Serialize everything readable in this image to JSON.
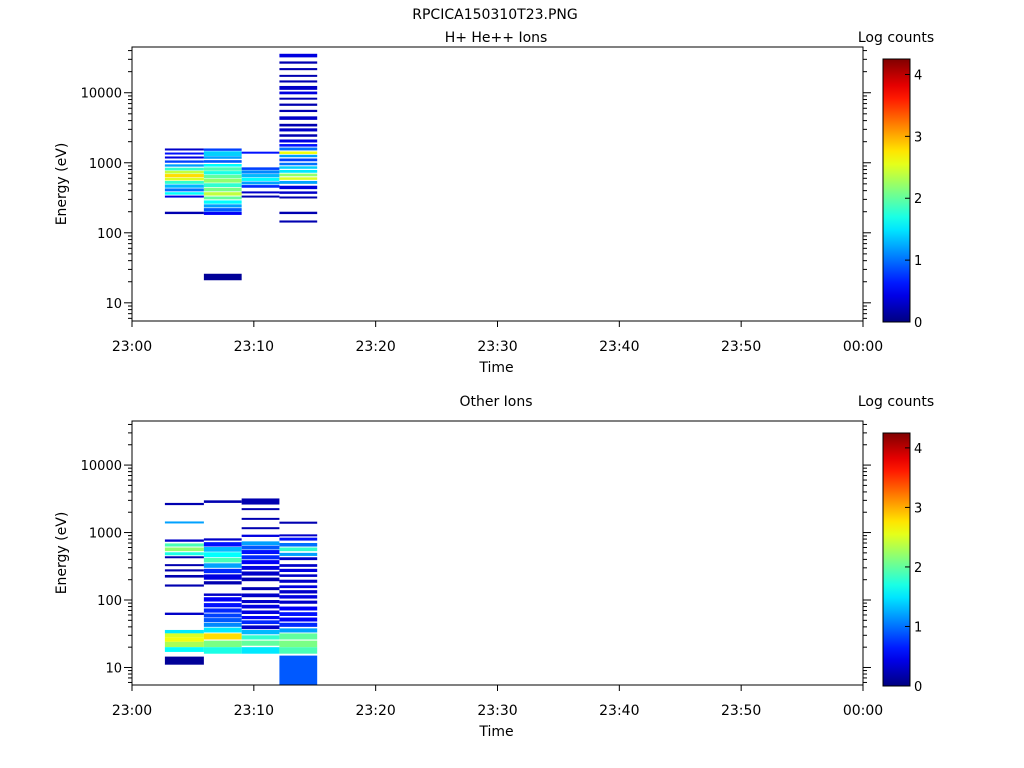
{
  "figure_title": "RPCICA150310T23.PNG",
  "chart_data": [
    {
      "type": "heatmap",
      "title": "H+ He++ Ions",
      "xlabel": "Time",
      "ylabel": "Energy (eV)",
      "x_ticks": [
        "23:00",
        "23:10",
        "23:20",
        "23:30",
        "23:40",
        "23:50",
        "00:00"
      ],
      "y_ticks": [
        "10",
        "100",
        "1000",
        "10000"
      ],
      "y_scale": "log",
      "ylim": [
        5.5,
        45000
      ],
      "xlim_minutes": [
        0,
        60
      ],
      "colorbar": {
        "label": "Log counts",
        "ticks": [
          "0",
          "1",
          "2",
          "3",
          "4"
        ],
        "range": [
          0,
          4.25
        ]
      },
      "time_bins_minutes": [
        [
          2.7,
          5.9
        ],
        [
          5.9,
          9.0
        ],
        [
          9.0,
          12.1
        ],
        [
          12.1,
          15.2
        ]
      ],
      "cells": [
        [
          0,
          [
            1500,
            1600
          ],
          0.3
        ],
        [
          0,
          [
            1320,
            1400
          ],
          0.6
        ],
        [
          0,
          [
            1150,
            1230
          ],
          0.4
        ],
        [
          0,
          [
            1000,
            1080
          ],
          0.8
        ],
        [
          0,
          [
            880,
            950
          ],
          1.2
        ],
        [
          0,
          [
            780,
            850
          ],
          1.8
        ],
        [
          0,
          [
            700,
            770
          ],
          2.4
        ],
        [
          0,
          [
            620,
            690
          ],
          2.8
        ],
        [
          0,
          [
            560,
            610
          ],
          2.5
        ],
        [
          0,
          [
            500,
            550
          ],
          1.8
        ],
        [
          0,
          [
            440,
            490
          ],
          1.3
        ],
        [
          0,
          [
            390,
            430
          ],
          1.0
        ],
        [
          0,
          [
            350,
            380
          ],
          1.6
        ],
        [
          0,
          [
            320,
            340
          ],
          0.4
        ],
        [
          0,
          [
            185,
            200
          ],
          0.2
        ],
        [
          1,
          [
            1480,
            1600
          ],
          0.8
        ],
        [
          1,
          [
            1250,
            1460
          ],
          1.4
        ],
        [
          1,
          [
            1140,
            1240
          ],
          1.2
        ],
        [
          1,
          [
            1000,
            1090
          ],
          0.9
        ],
        [
          1,
          [
            880,
            960
          ],
          1.6
        ],
        [
          1,
          [
            770,
            860
          ],
          1.9
        ],
        [
          1,
          [
            680,
            760
          ],
          1.7
        ],
        [
          1,
          [
            600,
            670
          ],
          2.0
        ],
        [
          1,
          [
            520,
            590
          ],
          2.2
        ],
        [
          1,
          [
            450,
            510
          ],
          1.8
        ],
        [
          1,
          [
            390,
            440
          ],
          2.1
        ],
        [
          1,
          [
            340,
            380
          ],
          2.4
        ],
        [
          1,
          [
            300,
            330
          ],
          2.0
        ],
        [
          1,
          [
            260,
            290
          ],
          1.6
        ],
        [
          1,
          [
            230,
            255
          ],
          1.2
        ],
        [
          1,
          [
            200,
            225
          ],
          0.9
        ],
        [
          1,
          [
            180,
            198
          ],
          0.5
        ],
        [
          1,
          [
            21,
            26
          ],
          0.1
        ],
        [
          2,
          [
            1360,
            1440
          ],
          0.6
        ],
        [
          2,
          [
            790,
            860
          ],
          0.8
        ],
        [
          2,
          [
            700,
            780
          ],
          1.1
        ],
        [
          2,
          [
            620,
            690
          ],
          1.3
        ],
        [
          2,
          [
            550,
            610
          ],
          1.6
        ],
        [
          2,
          [
            490,
            540
          ],
          1.2
        ],
        [
          2,
          [
            440,
            480
          ],
          0.7
        ],
        [
          2,
          [
            370,
            390
          ],
          0.3
        ],
        [
          2,
          [
            320,
            340
          ],
          0.2
        ],
        [
          3,
          [
            32000,
            36000
          ],
          0.4
        ],
        [
          3,
          [
            26000,
            28000
          ],
          0.2
        ],
        [
          3,
          [
            21000,
            22500
          ],
          0.2
        ],
        [
          3,
          [
            17000,
            18000
          ],
          0.2
        ],
        [
          3,
          [
            14000,
            15000
          ],
          0.2
        ],
        [
          3,
          [
            11000,
            12500
          ],
          0.3
        ],
        [
          3,
          [
            9500,
            10400
          ],
          0.4
        ],
        [
          3,
          [
            8000,
            8500
          ],
          0.2
        ],
        [
          3,
          [
            6500,
            7000
          ],
          0.2
        ],
        [
          3,
          [
            5300,
            5700
          ],
          0.2
        ],
        [
          3,
          [
            4100,
            4600
          ],
          0.3
        ],
        [
          3,
          [
            3300,
            3600
          ],
          0.2
        ],
        [
          3,
          [
            2800,
            3100
          ],
          0.3
        ],
        [
          3,
          [
            2350,
            2550
          ],
          0.2
        ],
        [
          3,
          [
            1950,
            2150
          ],
          0.4
        ],
        [
          3,
          [
            1700,
            1850
          ],
          0.6
        ],
        [
          3,
          [
            1500,
            1650
          ],
          1.0
        ],
        [
          3,
          [
            1330,
            1450
          ],
          2.6
        ],
        [
          3,
          [
            1200,
            1300
          ],
          1.2
        ],
        [
          3,
          [
            1050,
            1150
          ],
          0.8
        ],
        [
          3,
          [
            920,
            1000
          ],
          1.0
        ],
        [
          3,
          [
            820,
            890
          ],
          1.4
        ],
        [
          3,
          [
            720,
            790
          ],
          1.5
        ],
        [
          3,
          [
            640,
            700
          ],
          2.2
        ],
        [
          3,
          [
            570,
            620
          ],
          2.5
        ],
        [
          3,
          [
            500,
            550
          ],
          1.2
        ],
        [
          3,
          [
            420,
            470
          ],
          0.4
        ],
        [
          3,
          [
            360,
            390
          ],
          0.3
        ],
        [
          3,
          [
            310,
            330
          ],
          0.2
        ],
        [
          3,
          [
            185,
            200
          ],
          0.2
        ],
        [
          3,
          [
            140,
            150
          ],
          0.2
        ]
      ]
    },
    {
      "type": "heatmap",
      "title": "Other Ions",
      "xlabel": "Time",
      "ylabel": "Energy (eV)",
      "x_ticks": [
        "23:00",
        "23:10",
        "23:20",
        "23:30",
        "23:40",
        "23:50",
        "00:00"
      ],
      "y_ticks": [
        "10",
        "100",
        "1000",
        "10000"
      ],
      "y_scale": "log",
      "ylim": [
        5.5,
        45000
      ],
      "xlim_minutes": [
        0,
        60
      ],
      "colorbar": {
        "label": "Log counts",
        "ticks": [
          "0",
          "1",
          "2",
          "3",
          "4"
        ],
        "range": [
          0,
          4.25
        ]
      },
      "time_bins_minutes": [
        [
          2.7,
          5.9
        ],
        [
          5.9,
          9.0
        ],
        [
          9.0,
          12.1
        ],
        [
          12.1,
          15.2
        ]
      ],
      "cells": [
        [
          0,
          [
            2550,
            2750
          ],
          0.2
        ],
        [
          0,
          [
            1380,
            1460
          ],
          1.2
        ],
        [
          0,
          [
            730,
            790
          ],
          0.3
        ],
        [
          0,
          [
            620,
            690
          ],
          1.9
        ],
        [
          0,
          [
            530,
            600
          ],
          2.2
        ],
        [
          0,
          [
            460,
            510
          ],
          1.7
        ],
        [
          0,
          [
            420,
            445
          ],
          0.2
        ],
        [
          0,
          [
            320,
            340
          ],
          0.2
        ],
        [
          0,
          [
            265,
            285
          ],
          0.2
        ],
        [
          0,
          [
            215,
            235
          ],
          0.2
        ],
        [
          0,
          [
            158,
            170
          ],
          0.2
        ],
        [
          0,
          [
            60,
            65
          ],
          0.3
        ],
        [
          0,
          [
            32,
            36
          ],
          1.5
        ],
        [
          0,
          [
            28,
            32
          ],
          2.5
        ],
        [
          0,
          [
            24,
            28
          ],
          2.6
        ],
        [
          0,
          [
            20,
            24
          ],
          2.3
        ],
        [
          0,
          [
            17,
            20
          ],
          1.6
        ],
        [
          0,
          [
            11,
            14.5
          ],
          0.1
        ],
        [
          1,
          [
            2750,
            3000
          ],
          0.2
        ],
        [
          1,
          [
            760,
            820
          ],
          0.3
        ],
        [
          1,
          [
            620,
            720
          ],
          0.6
        ],
        [
          1,
          [
            520,
            610
          ],
          1.3
        ],
        [
          1,
          [
            430,
            510
          ],
          1.6
        ],
        [
          1,
          [
            360,
            420
          ],
          1.9
        ],
        [
          1,
          [
            300,
            350
          ],
          1.2
        ],
        [
          1,
          [
            250,
            290
          ],
          0.7
        ],
        [
          1,
          [
            200,
            240
          ],
          0.4
        ],
        [
          1,
          [
            170,
            190
          ],
          0.2
        ],
        [
          1,
          [
            115,
            125
          ],
          0.3
        ],
        [
          1,
          [
            95,
            110
          ],
          0.5
        ],
        [
          1,
          [
            78,
            90
          ],
          0.6
        ],
        [
          1,
          [
            65,
            75
          ],
          0.7
        ],
        [
          1,
          [
            55,
            63
          ],
          0.8
        ],
        [
          1,
          [
            47,
            54
          ],
          0.9
        ],
        [
          1,
          [
            40,
            46
          ],
          1.1
        ],
        [
          1,
          [
            33,
            39
          ],
          1.5
        ],
        [
          1,
          [
            26,
            32
          ],
          2.8
        ],
        [
          1,
          [
            20,
            25
          ],
          2.1
        ],
        [
          1,
          [
            16,
            20
          ],
          1.7
        ],
        [
          2,
          [
            2600,
            3200
          ],
          0.2
        ],
        [
          2,
          [
            2150,
            2300
          ],
          0.2
        ],
        [
          2,
          [
            1550,
            1650
          ],
          0.2
        ],
        [
          2,
          [
            1130,
            1200
          ],
          0.2
        ],
        [
          2,
          [
            860,
            930
          ],
          0.4
        ],
        [
          2,
          [
            650,
            740
          ],
          1.2
        ],
        [
          2,
          [
            560,
            640
          ],
          0.9
        ],
        [
          2,
          [
            480,
            550
          ],
          0.6
        ],
        [
          2,
          [
            400,
            460
          ],
          0.7
        ],
        [
          2,
          [
            340,
            390
          ],
          0.5
        ],
        [
          2,
          [
            280,
            320
          ],
          0.4
        ],
        [
          2,
          [
            230,
            265
          ],
          0.3
        ],
        [
          2,
          [
            190,
            215
          ],
          0.2
        ],
        [
          2,
          [
            140,
            155
          ],
          0.2
        ],
        [
          2,
          [
            110,
            125
          ],
          0.3
        ],
        [
          2,
          [
            90,
            100
          ],
          0.3
        ],
        [
          2,
          [
            75,
            85
          ],
          0.4
        ],
        [
          2,
          [
            62,
            70
          ],
          0.4
        ],
        [
          2,
          [
            52,
            58
          ],
          0.5
        ],
        [
          2,
          [
            44,
            50
          ],
          0.7
        ],
        [
          2,
          [
            37,
            42
          ],
          0.3
        ],
        [
          2,
          [
            31,
            36
          ],
          1.3
        ],
        [
          2,
          [
            26,
            30
          ],
          1.8
        ],
        [
          2,
          [
            21,
            25
          ],
          2.0
        ],
        [
          2,
          [
            16,
            20
          ],
          1.5
        ],
        [
          3,
          [
            1350,
            1450
          ],
          0.2
        ],
        [
          3,
          [
            880,
            940
          ],
          0.3
        ],
        [
          3,
          [
            760,
            840
          ],
          0.6
        ],
        [
          3,
          [
            620,
            700
          ],
          1.0
        ],
        [
          3,
          [
            530,
            600
          ],
          1.8
        ],
        [
          3,
          [
            450,
            500
          ],
          1.2
        ],
        [
          3,
          [
            390,
            430
          ],
          0.3
        ],
        [
          3,
          [
            310,
            340
          ],
          0.3
        ],
        [
          3,
          [
            260,
            290
          ],
          0.4
        ],
        [
          3,
          [
            220,
            240
          ],
          0.3
        ],
        [
          3,
          [
            180,
            200
          ],
          0.3
        ],
        [
          3,
          [
            150,
            165
          ],
          0.4
        ],
        [
          3,
          [
            125,
            140
          ],
          0.3
        ],
        [
          3,
          [
            105,
            118
          ],
          0.4
        ],
        [
          3,
          [
            88,
            98
          ],
          0.3
        ],
        [
          3,
          [
            70,
            80
          ],
          0.5
        ],
        [
          3,
          [
            58,
            66
          ],
          0.6
        ],
        [
          3,
          [
            48,
            55
          ],
          0.5
        ],
        [
          3,
          [
            40,
            46
          ],
          0.7
        ],
        [
          3,
          [
            33,
            38
          ],
          1.2
        ],
        [
          3,
          [
            26,
            32
          ],
          2.0
        ],
        [
          3,
          [
            20,
            25
          ],
          2.1
        ],
        [
          3,
          [
            16,
            20
          ],
          1.9
        ],
        [
          3,
          [
            5.5,
            15
          ],
          0.9
        ]
      ]
    }
  ]
}
